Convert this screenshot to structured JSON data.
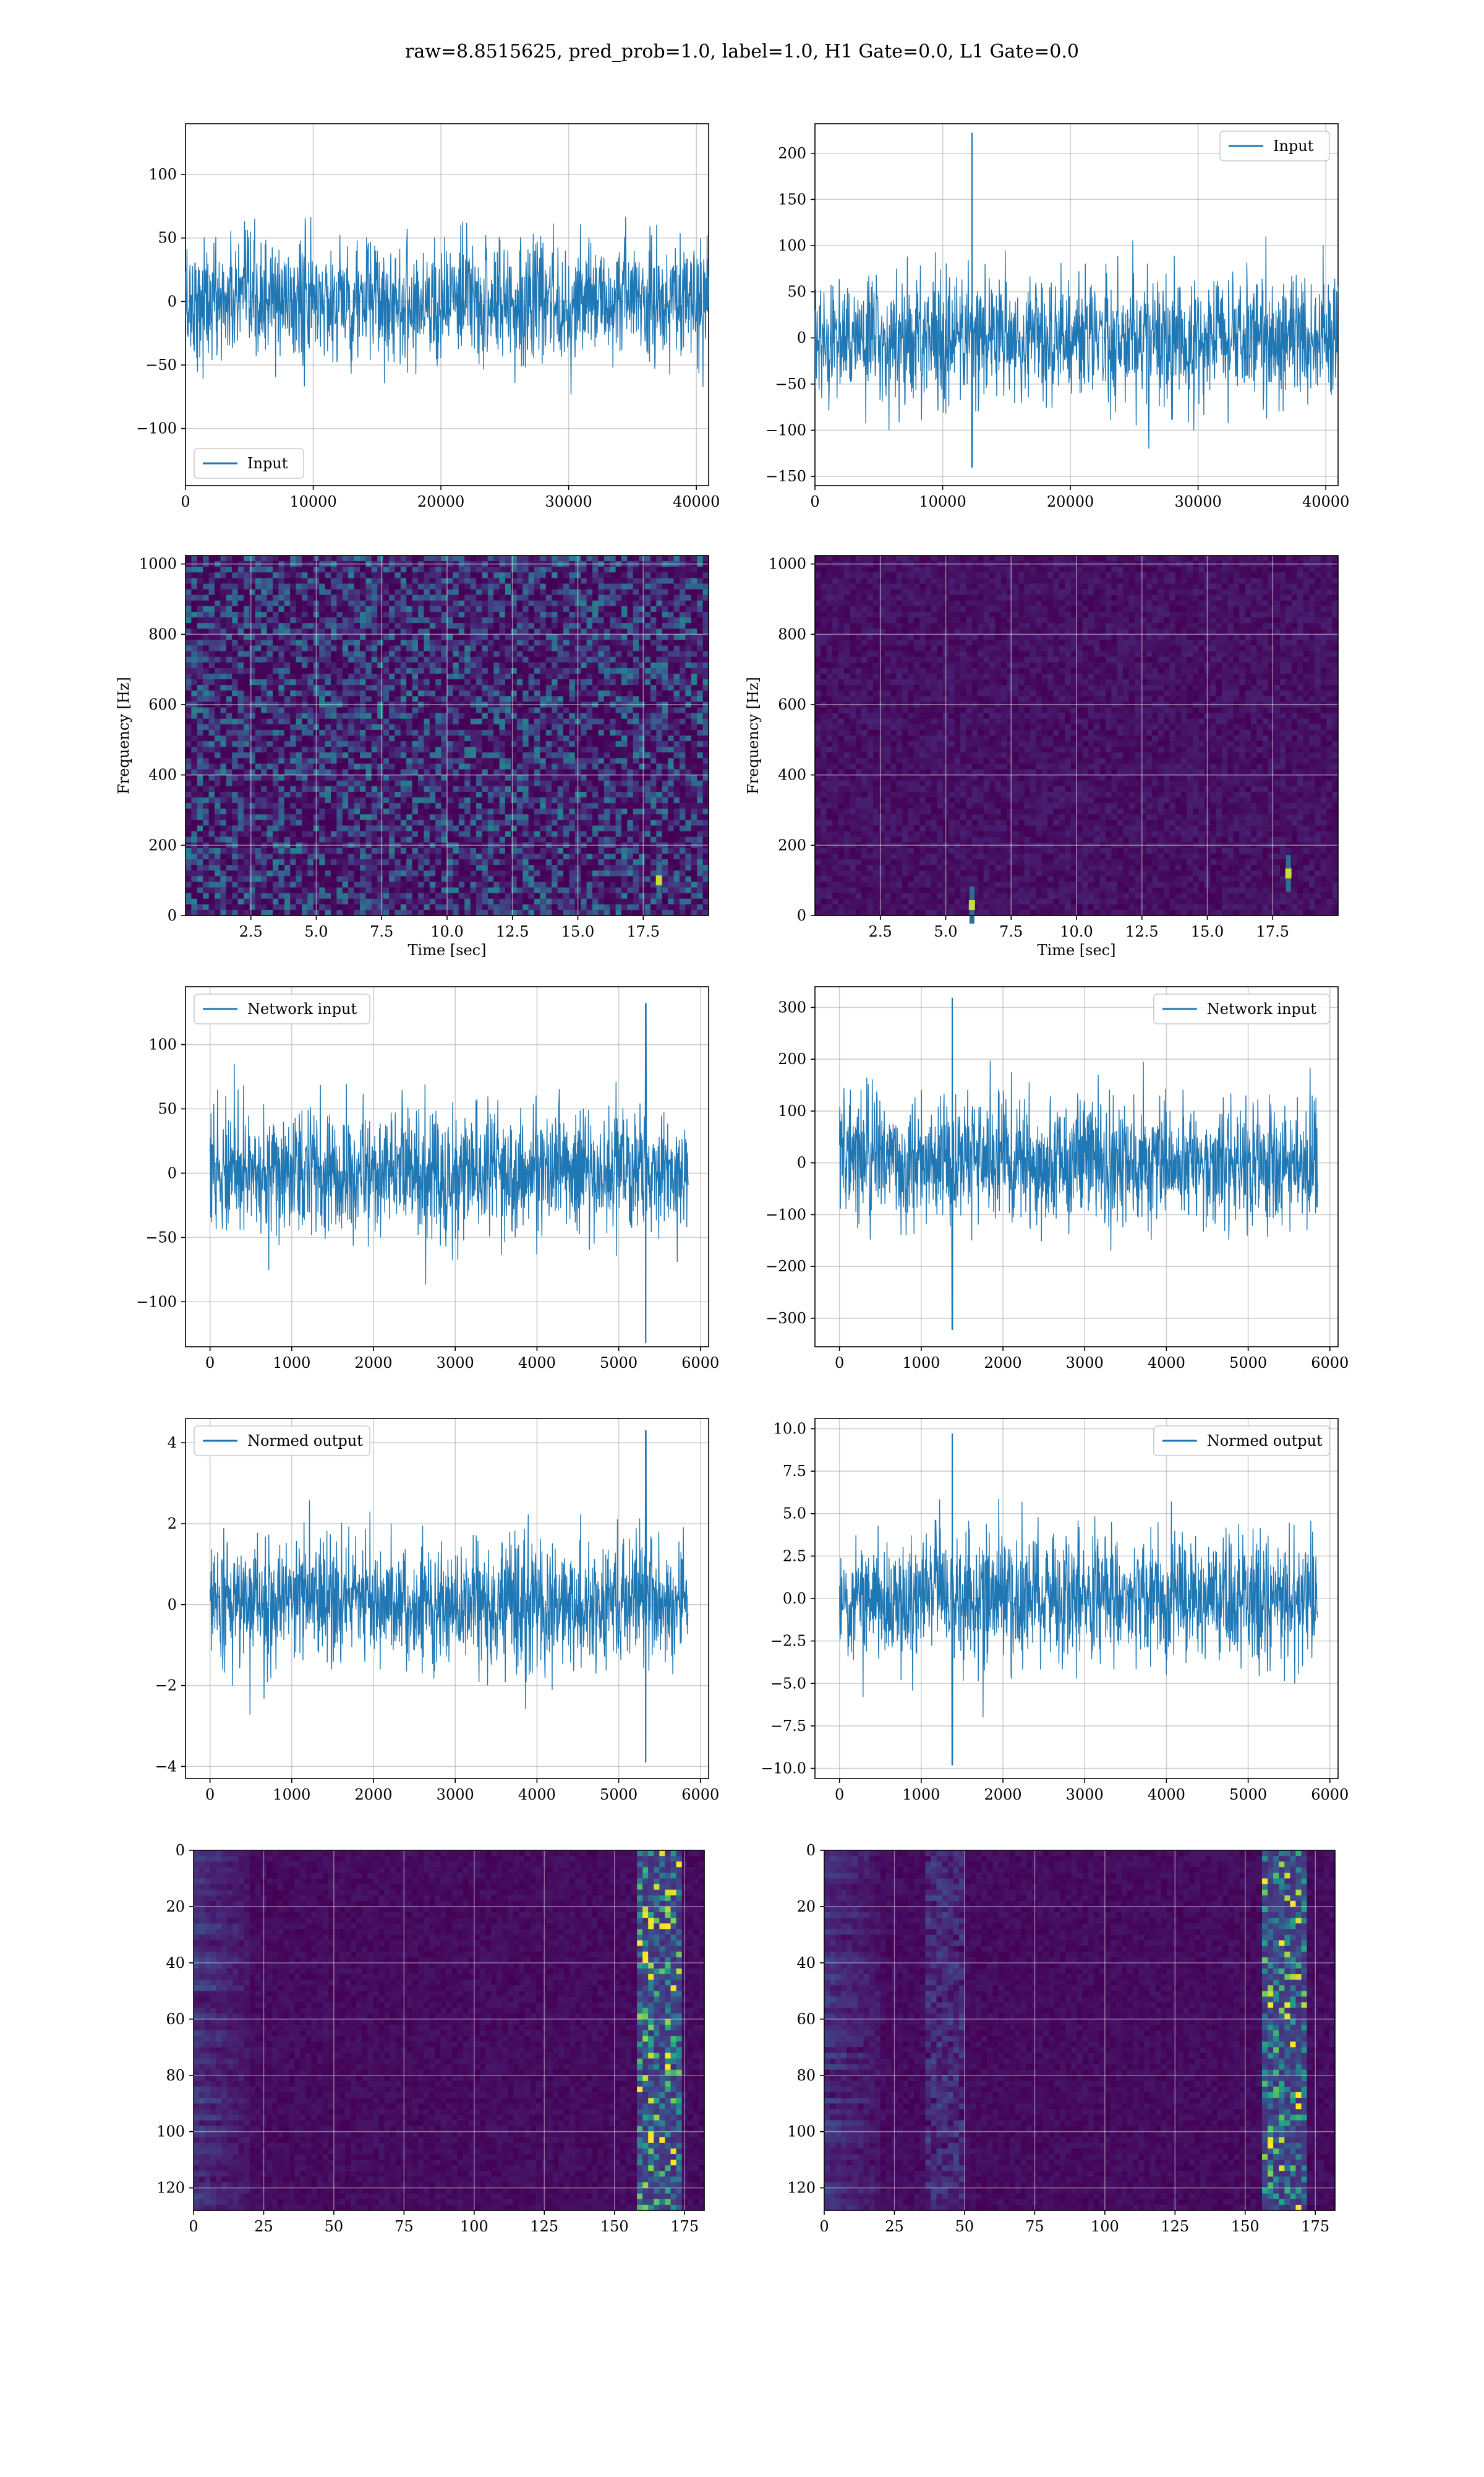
{
  "figure": {
    "suptitle": "raw=8.8515625, pred_prob=1.0, label=1.0, H1 Gate=0.0, L1 Gate=0.0"
  },
  "colors": {
    "line": "#1f77b4",
    "grid": "#b0b0b0",
    "viridis_dark": "#440154",
    "viridis_mid": "#21918c",
    "viridis_bright": "#fde725"
  },
  "chart_data": [
    {
      "id": "h1-input",
      "type": "line",
      "series": [
        {
          "name": "Input",
          "values": []
        }
      ],
      "xlim": [
        0,
        40960
      ],
      "ylim": [
        -145,
        140
      ],
      "xticks": [
        0,
        10000,
        20000,
        30000,
        40000
      ],
      "yticks": [
        -100,
        -50,
        0,
        50,
        100
      ],
      "xlabel": "",
      "ylabel": "",
      "legend": "lower left",
      "grid": true
    },
    {
      "id": "l1-input",
      "type": "line",
      "series": [
        {
          "name": "Input",
          "values": []
        }
      ],
      "xlim": [
        0,
        40960
      ],
      "ylim": [
        -160,
        232
      ],
      "xticks": [
        0,
        10000,
        20000,
        30000,
        40000
      ],
      "yticks": [
        -150,
        -100,
        -50,
        0,
        50,
        100,
        150,
        200
      ],
      "xlabel": "",
      "ylabel": "",
      "legend": "upper right",
      "grid": true,
      "glitch": {
        "x": 12300,
        "peak": 222,
        "trough": -140
      }
    },
    {
      "id": "h1-spectrogram",
      "type": "heatmap",
      "xlim": [
        0,
        20
      ],
      "ylim": [
        0,
        1024
      ],
      "xticks": [
        2.5,
        5.0,
        7.5,
        10.0,
        12.5,
        15.0,
        17.5
      ],
      "yticks": [
        0,
        200,
        400,
        600,
        800,
        1000
      ],
      "xlabel": "Time [sec]",
      "ylabel": "Frequency [Hz]",
      "grid": true,
      "hotspots": [
        {
          "t": 18.1,
          "f": 100
        }
      ]
    },
    {
      "id": "l1-spectrogram",
      "type": "heatmap",
      "xlim": [
        0,
        20
      ],
      "ylim": [
        0,
        1024
      ],
      "xticks": [
        2.5,
        5.0,
        7.5,
        10.0,
        12.5,
        15.0,
        17.5
      ],
      "yticks": [
        0,
        200,
        400,
        600,
        800,
        1000
      ],
      "xlabel": "Time [sec]",
      "ylabel": "Frequency [Hz]",
      "grid": true,
      "hotspots": [
        {
          "t": 6.0,
          "f": 30
        },
        {
          "t": 18.1,
          "f": 120
        }
      ]
    },
    {
      "id": "h1-network-input",
      "type": "line",
      "series": [
        {
          "name": "Network input",
          "values": []
        }
      ],
      "xlim": [
        -300,
        6100
      ],
      "ylim": [
        -135,
        145
      ],
      "xticks": [
        0,
        1000,
        2000,
        3000,
        4000,
        5000,
        6000
      ],
      "yticks": [
        -100,
        -50,
        0,
        50,
        100
      ],
      "xlabel": "",
      "ylabel": "",
      "legend": "upper left",
      "grid": true,
      "glitch": {
        "x": 5330,
        "peak": 132,
        "trough": -132
      }
    },
    {
      "id": "l1-network-input",
      "type": "line",
      "series": [
        {
          "name": "Network input",
          "values": []
        }
      ],
      "xlim": [
        -300,
        6100
      ],
      "ylim": [
        -355,
        340
      ],
      "xticks": [
        0,
        1000,
        2000,
        3000,
        4000,
        5000,
        6000
      ],
      "yticks": [
        -300,
        -200,
        -100,
        0,
        100,
        200,
        300
      ],
      "xlabel": "",
      "ylabel": "",
      "legend": "upper right",
      "grid": true,
      "glitch": {
        "x": 1380,
        "peak": 318,
        "trough": -322
      }
    },
    {
      "id": "h1-normed-output",
      "type": "line",
      "series": [
        {
          "name": "Normed output",
          "values": []
        }
      ],
      "xlim": [
        -300,
        6100
      ],
      "ylim": [
        -4.3,
        4.6
      ],
      "xticks": [
        0,
        1000,
        2000,
        3000,
        4000,
        5000,
        6000
      ],
      "yticks": [
        -4,
        -2,
        0,
        2,
        4
      ],
      "xlabel": "",
      "ylabel": "",
      "legend": "upper left",
      "grid": true,
      "glitch": {
        "x": 5330,
        "peak": 4.3,
        "trough": -3.9
      }
    },
    {
      "id": "l1-normed-output",
      "type": "line",
      "series": [
        {
          "name": "Normed output",
          "values": []
        }
      ],
      "xlim": [
        -300,
        6100
      ],
      "ylim": [
        -10.6,
        10.6
      ],
      "xticks": [
        0,
        1000,
        2000,
        3000,
        4000,
        5000,
        6000
      ],
      "yticks": [
        -10.0,
        -7.5,
        -5.0,
        -2.5,
        0.0,
        2.5,
        5.0,
        7.5,
        10.0
      ],
      "xlabel": "",
      "ylabel": "",
      "legend": "upper right",
      "grid": true,
      "glitch": {
        "x": 1380,
        "peak": 9.7,
        "trough": -9.8
      }
    },
    {
      "id": "h1-feature-map",
      "type": "heatmap",
      "xlim": [
        0,
        182
      ],
      "ylim": [
        128,
        0
      ],
      "xticks": [
        0,
        25,
        50,
        75,
        100,
        125,
        150,
        175
      ],
      "yticks": [
        0,
        20,
        40,
        60,
        80,
        100,
        120
      ],
      "xlabel": "",
      "ylabel": "",
      "grid": true,
      "bright_band": [
        158,
        172
      ]
    },
    {
      "id": "l1-feature-map",
      "type": "heatmap",
      "xlim": [
        0,
        182
      ],
      "ylim": [
        128,
        0
      ],
      "xticks": [
        0,
        25,
        50,
        75,
        100,
        125,
        150,
        175
      ],
      "yticks": [
        0,
        20,
        40,
        60,
        80,
        100,
        120
      ],
      "xlabel": "",
      "ylabel": "",
      "grid": true,
      "bright_band": [
        155,
        170
      ],
      "secondary_band": [
        35,
        48
      ]
    }
  ]
}
